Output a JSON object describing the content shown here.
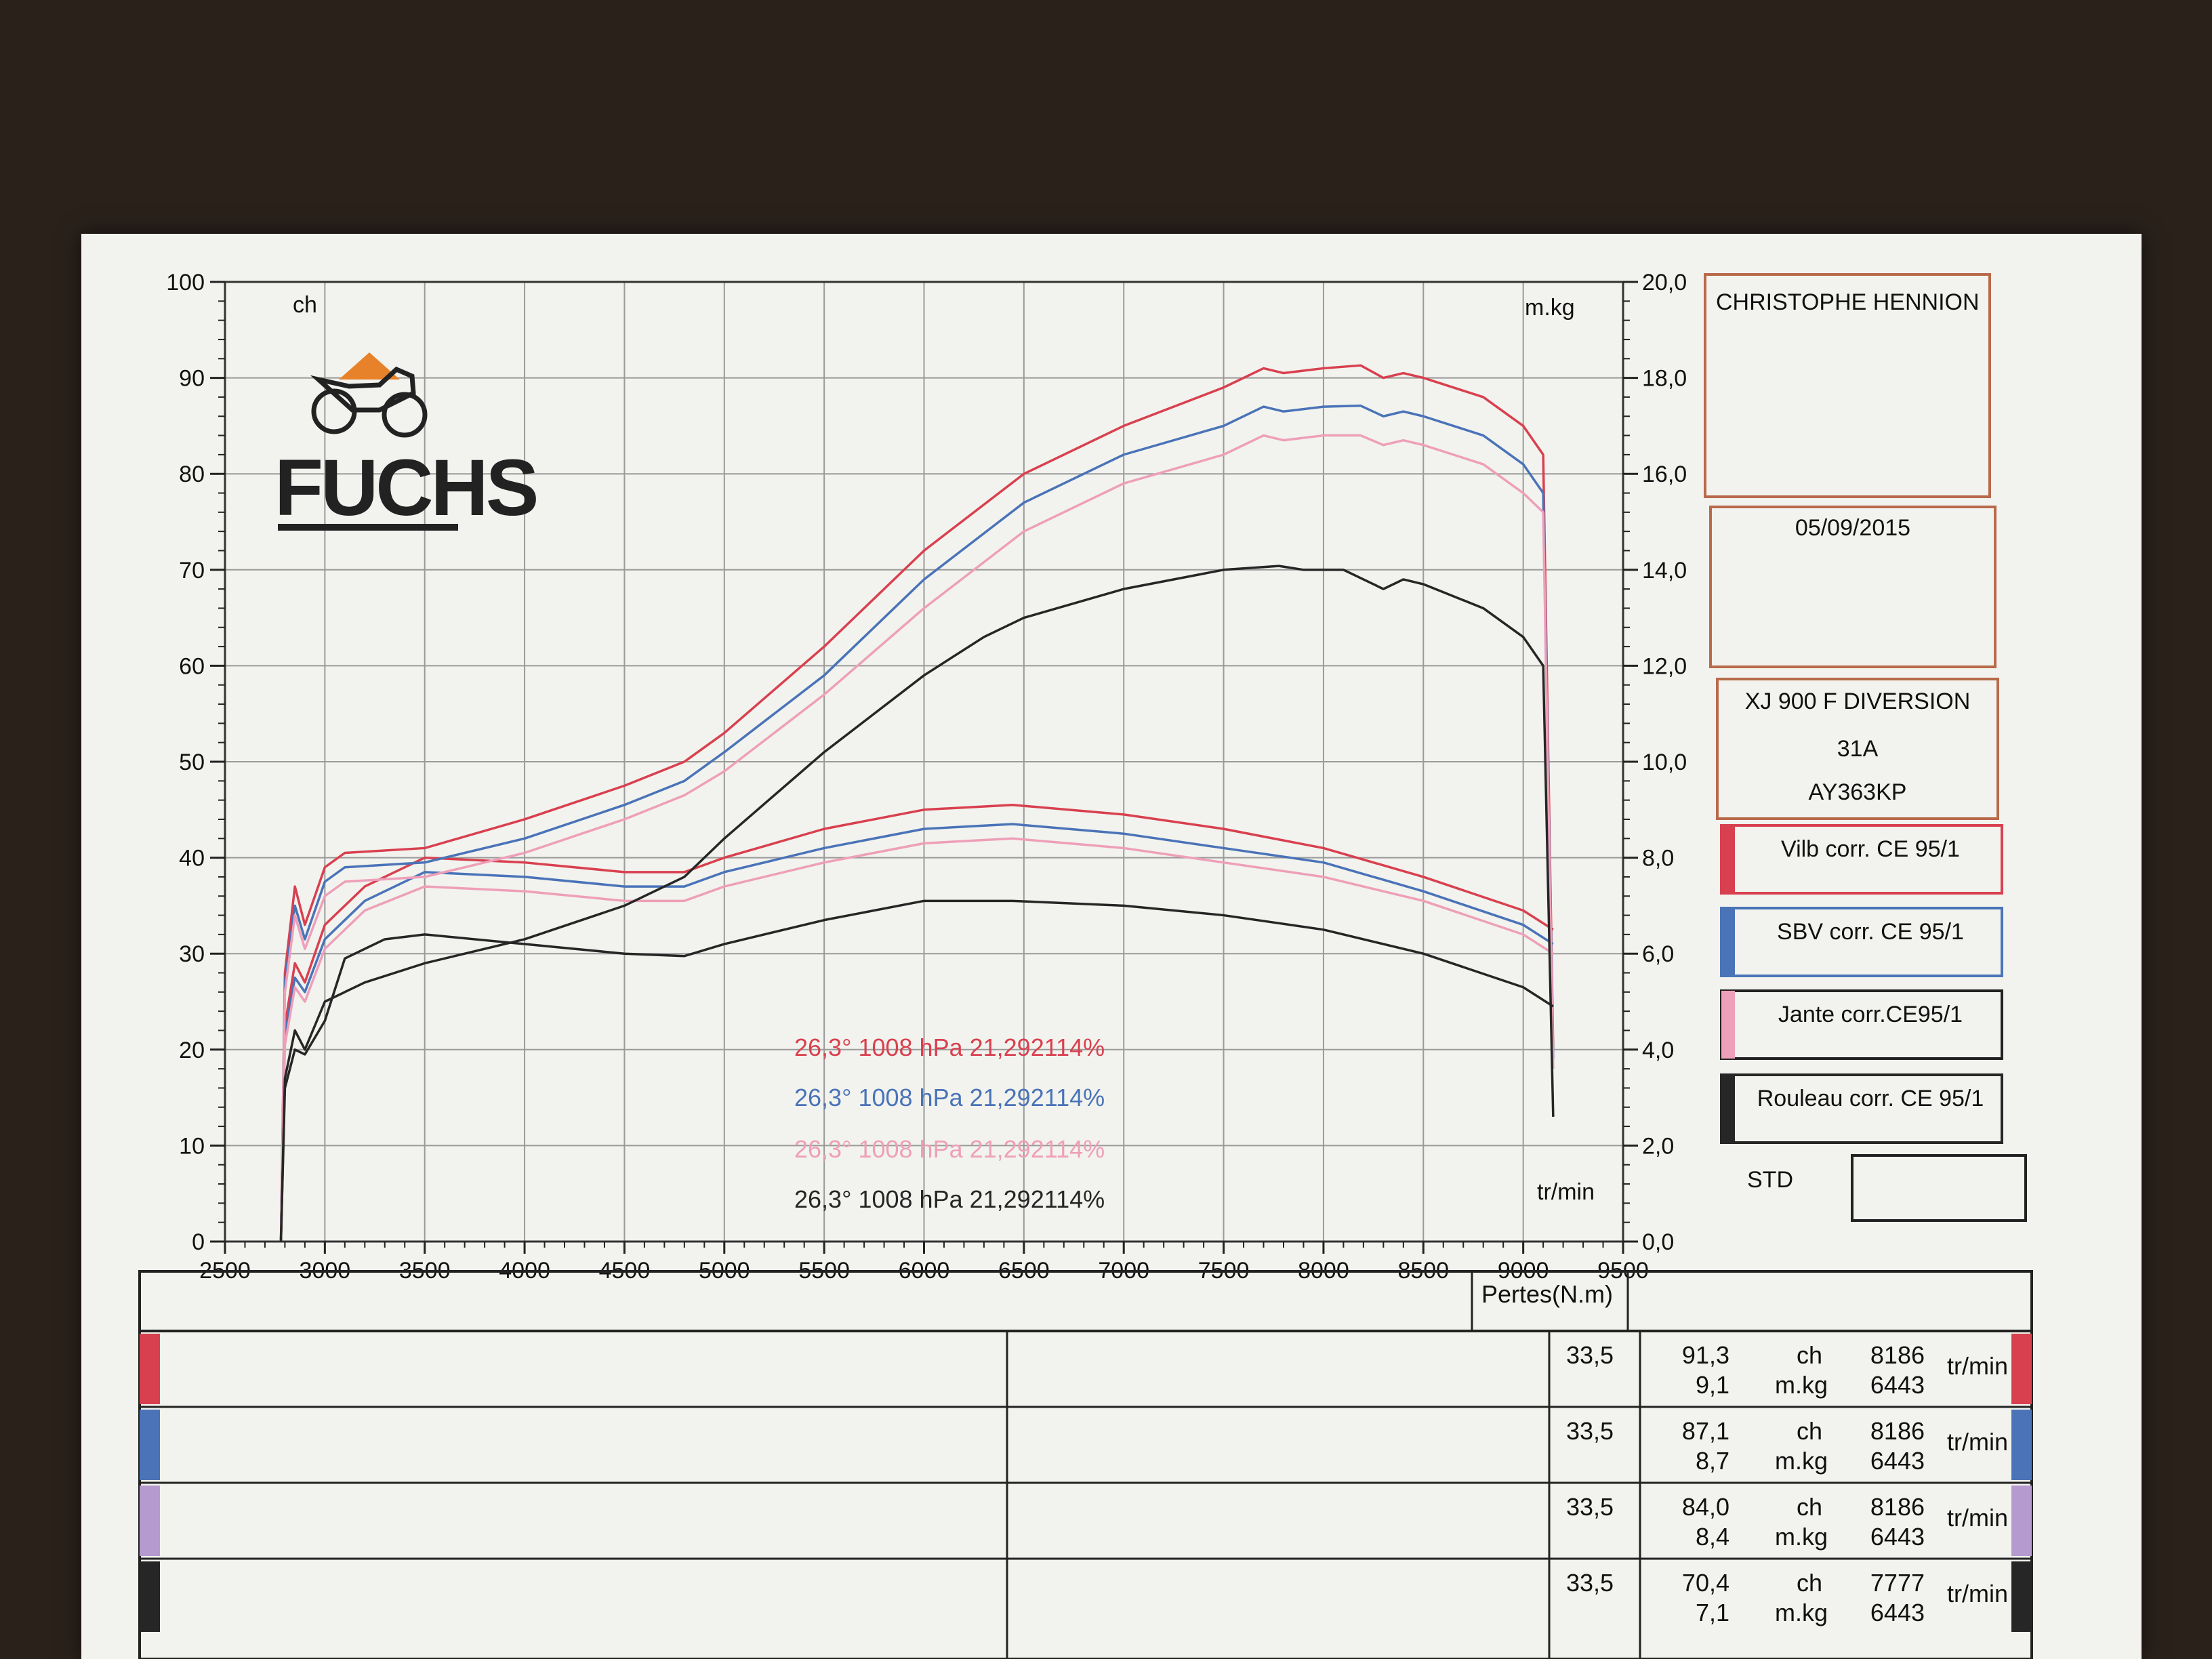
{
  "chart_data": {
    "type": "line",
    "brand": "FUCHS",
    "x_unit": "tr/min",
    "y_left_unit": "ch",
    "y_right_unit": "m.kg",
    "xlim": [
      2500,
      9500
    ],
    "ylim_left": [
      0,
      100
    ],
    "ylim_right": [
      0,
      20
    ],
    "grid": true,
    "x_ticks": [
      "2500",
      "3000",
      "3500",
      "4000",
      "4500",
      "5000",
      "5500",
      "6000",
      "6500",
      "7000",
      "7500",
      "8000",
      "8500",
      "9000",
      "9500"
    ],
    "y_left_ticks": [
      "0",
      "10",
      "20",
      "30",
      "40",
      "50",
      "60",
      "70",
      "80",
      "90",
      "100"
    ],
    "y_right_ticks": [
      "0,0",
      "2,0",
      "4,0",
      "6,0",
      "8,0",
      "10,0",
      "12,0",
      "14,0",
      "16,0",
      "18,0",
      "20,0"
    ],
    "series": [
      {
        "name": "Vilb corr. CE 95/1",
        "color": "#d9404f",
        "power_ch": [
          [
            2780,
            0
          ],
          [
            2800,
            28
          ],
          [
            2850,
            37
          ],
          [
            2900,
            33
          ],
          [
            3000,
            39
          ],
          [
            3100,
            40.5
          ],
          [
            3500,
            41
          ],
          [
            4000,
            44
          ],
          [
            4500,
            47.5
          ],
          [
            4800,
            50
          ],
          [
            5000,
            53
          ],
          [
            5500,
            62
          ],
          [
            6000,
            72
          ],
          [
            6500,
            80
          ],
          [
            7000,
            85
          ],
          [
            7500,
            89
          ],
          [
            7700,
            91
          ],
          [
            7800,
            90.5
          ],
          [
            8000,
            91
          ],
          [
            8186,
            91.3
          ],
          [
            8300,
            90
          ],
          [
            8400,
            90.5
          ],
          [
            8500,
            90
          ],
          [
            8800,
            88
          ],
          [
            9000,
            85
          ],
          [
            9100,
            82
          ],
          [
            9150,
            20
          ]
        ],
        "torque_mkg": [
          [
            2780,
            0
          ],
          [
            2800,
            4.5
          ],
          [
            2850,
            5.8
          ],
          [
            2900,
            5.4
          ],
          [
            3000,
            6.6
          ],
          [
            3200,
            7.4
          ],
          [
            3500,
            8.0
          ],
          [
            4000,
            7.9
          ],
          [
            4500,
            7.7
          ],
          [
            4800,
            7.7
          ],
          [
            5000,
            8.0
          ],
          [
            5500,
            8.6
          ],
          [
            6000,
            9.0
          ],
          [
            6443,
            9.1
          ],
          [
            7000,
            8.9
          ],
          [
            7500,
            8.6
          ],
          [
            8000,
            8.2
          ],
          [
            8500,
            7.6
          ],
          [
            9000,
            6.9
          ],
          [
            9150,
            6.5
          ]
        ]
      },
      {
        "name": "SBV corr. CE 95/1",
        "color": "#4a73b8",
        "power_ch": [
          [
            2780,
            0
          ],
          [
            2800,
            27
          ],
          [
            2850,
            35
          ],
          [
            2900,
            31.5
          ],
          [
            3000,
            37.5
          ],
          [
            3100,
            39
          ],
          [
            3500,
            39.5
          ],
          [
            4000,
            42
          ],
          [
            4500,
            45.5
          ],
          [
            4800,
            48
          ],
          [
            5000,
            51
          ],
          [
            5500,
            59
          ],
          [
            6000,
            69
          ],
          [
            6500,
            77
          ],
          [
            7000,
            82
          ],
          [
            7500,
            85
          ],
          [
            7700,
            87
          ],
          [
            7800,
            86.5
          ],
          [
            8000,
            87
          ],
          [
            8186,
            87.1
          ],
          [
            8300,
            86
          ],
          [
            8400,
            86.5
          ],
          [
            8500,
            86
          ],
          [
            8800,
            84
          ],
          [
            9000,
            81
          ],
          [
            9100,
            78
          ],
          [
            9150,
            19
          ]
        ],
        "torque_mkg": [
          [
            2780,
            0
          ],
          [
            2800,
            4.3
          ],
          [
            2850,
            5.5
          ],
          [
            2900,
            5.2
          ],
          [
            3000,
            6.3
          ],
          [
            3200,
            7.1
          ],
          [
            3500,
            7.7
          ],
          [
            4000,
            7.6
          ],
          [
            4500,
            7.4
          ],
          [
            4800,
            7.4
          ],
          [
            5000,
            7.7
          ],
          [
            5500,
            8.2
          ],
          [
            6000,
            8.6
          ],
          [
            6443,
            8.7
          ],
          [
            7000,
            8.5
          ],
          [
            7500,
            8.2
          ],
          [
            8000,
            7.9
          ],
          [
            8500,
            7.3
          ],
          [
            9000,
            6.6
          ],
          [
            9150,
            6.2
          ]
        ]
      },
      {
        "name": "Jante corr.CE95/1",
        "color": "#ee9fb9",
        "power_ch": [
          [
            2780,
            0
          ],
          [
            2800,
            26
          ],
          [
            2850,
            34
          ],
          [
            2900,
            30.5
          ],
          [
            3000,
            36
          ],
          [
            3100,
            37.5
          ],
          [
            3500,
            38
          ],
          [
            4000,
            40.5
          ],
          [
            4500,
            44
          ],
          [
            4800,
            46.5
          ],
          [
            5000,
            49
          ],
          [
            5500,
            57
          ],
          [
            6000,
            66
          ],
          [
            6500,
            74
          ],
          [
            7000,
            79
          ],
          [
            7500,
            82
          ],
          [
            7700,
            84
          ],
          [
            7800,
            83.5
          ],
          [
            8000,
            84
          ],
          [
            8186,
            84.0
          ],
          [
            8300,
            83
          ],
          [
            8400,
            83.5
          ],
          [
            8500,
            83
          ],
          [
            8800,
            81
          ],
          [
            9000,
            78
          ],
          [
            9100,
            76
          ],
          [
            9150,
            18
          ]
        ],
        "torque_mkg": [
          [
            2780,
            0
          ],
          [
            2800,
            4.1
          ],
          [
            2850,
            5.3
          ],
          [
            2900,
            5.0
          ],
          [
            3000,
            6.1
          ],
          [
            3200,
            6.9
          ],
          [
            3500,
            7.4
          ],
          [
            4000,
            7.3
          ],
          [
            4500,
            7.1
          ],
          [
            4800,
            7.1
          ],
          [
            5000,
            7.4
          ],
          [
            5500,
            7.9
          ],
          [
            6000,
            8.3
          ],
          [
            6443,
            8.4
          ],
          [
            7000,
            8.2
          ],
          [
            7500,
            7.9
          ],
          [
            8000,
            7.6
          ],
          [
            8500,
            7.1
          ],
          [
            9000,
            6.4
          ],
          [
            9150,
            6.0
          ]
        ]
      },
      {
        "name": "Rouleau corr. CE 95/1",
        "color": "#262626",
        "power_ch": [
          [
            2780,
            0
          ],
          [
            2800,
            17
          ],
          [
            2850,
            22
          ],
          [
            2900,
            20
          ],
          [
            3000,
            25
          ],
          [
            3200,
            27
          ],
          [
            3500,
            29
          ],
          [
            4000,
            31.5
          ],
          [
            4500,
            35
          ],
          [
            4800,
            38
          ],
          [
            5000,
            42
          ],
          [
            5500,
            51
          ],
          [
            6000,
            59
          ],
          [
            6300,
            63
          ],
          [
            6500,
            65
          ],
          [
            7000,
            68
          ],
          [
            7500,
            70
          ],
          [
            7777,
            70.4
          ],
          [
            7900,
            70
          ],
          [
            8100,
            70
          ],
          [
            8300,
            68
          ],
          [
            8400,
            69
          ],
          [
            8500,
            68.5
          ],
          [
            8800,
            66
          ],
          [
            9000,
            63
          ],
          [
            9100,
            60
          ],
          [
            9150,
            13
          ]
        ],
        "torque_mkg": [
          [
            2780,
            0
          ],
          [
            2800,
            3.2
          ],
          [
            2850,
            4.0
          ],
          [
            2900,
            3.9
          ],
          [
            3000,
            4.6
          ],
          [
            3100,
            5.9
          ],
          [
            3300,
            6.3
          ],
          [
            3500,
            6.4
          ],
          [
            4000,
            6.2
          ],
          [
            4500,
            6.0
          ],
          [
            4800,
            5.95
          ],
          [
            5000,
            6.2
          ],
          [
            5500,
            6.7
          ],
          [
            6000,
            7.1
          ],
          [
            6443,
            7.1
          ],
          [
            7000,
            7.0
          ],
          [
            7500,
            6.8
          ],
          [
            8000,
            6.5
          ],
          [
            8500,
            6.0
          ],
          [
            9000,
            5.3
          ],
          [
            9150,
            4.9
          ]
        ]
      }
    ]
  },
  "info": {
    "name": "CHRISTOPHE HENNION",
    "date": "05/09/2015",
    "vehicle": "XJ 900 F DIVERSION",
    "code": "31A",
    "plate": "AY363KP",
    "std_label": "STD"
  },
  "conditions": [
    {
      "text": "26,3°  1008 hPa  21,292114%",
      "color": "#d9404f"
    },
    {
      "text": "26,3°  1008 hPa  21,292114%",
      "color": "#4a73b8"
    },
    {
      "text": "26,3°  1008 hPa  21,292114%",
      "color": "#ee9fb9"
    },
    {
      "text": "26,3°  1008 hPa  21,292114%",
      "color": "#262626"
    }
  ],
  "table": {
    "losses_header": "Pertes(N.m)",
    "rows": [
      {
        "loss": "33,5",
        "power": "91,3",
        "torque": "9,1",
        "unit1": "ch",
        "unit2": "m.kg",
        "rpm1": "8186",
        "rpm2": "6443",
        "rpm_unit": "tr/min",
        "color": "#d9404f"
      },
      {
        "loss": "33,5",
        "power": "87,1",
        "torque": "8,7",
        "unit1": "ch",
        "unit2": "m.kg",
        "rpm1": "8186",
        "rpm2": "6443",
        "rpm_unit": "tr/min",
        "color": "#4a73b8"
      },
      {
        "loss": "33,5",
        "power": "84,0",
        "torque": "8,4",
        "unit1": "ch",
        "unit2": "m.kg",
        "rpm1": "8186",
        "rpm2": "6443",
        "rpm_unit": "tr/min",
        "color": "#b59ad0"
      },
      {
        "loss": "33,5",
        "power": "70,4",
        "torque": "7,1",
        "unit1": "ch",
        "unit2": "m.kg",
        "rpm1": "7777",
        "rpm2": "6443",
        "rpm_unit": "tr/min",
        "color": "#262626"
      }
    ]
  }
}
